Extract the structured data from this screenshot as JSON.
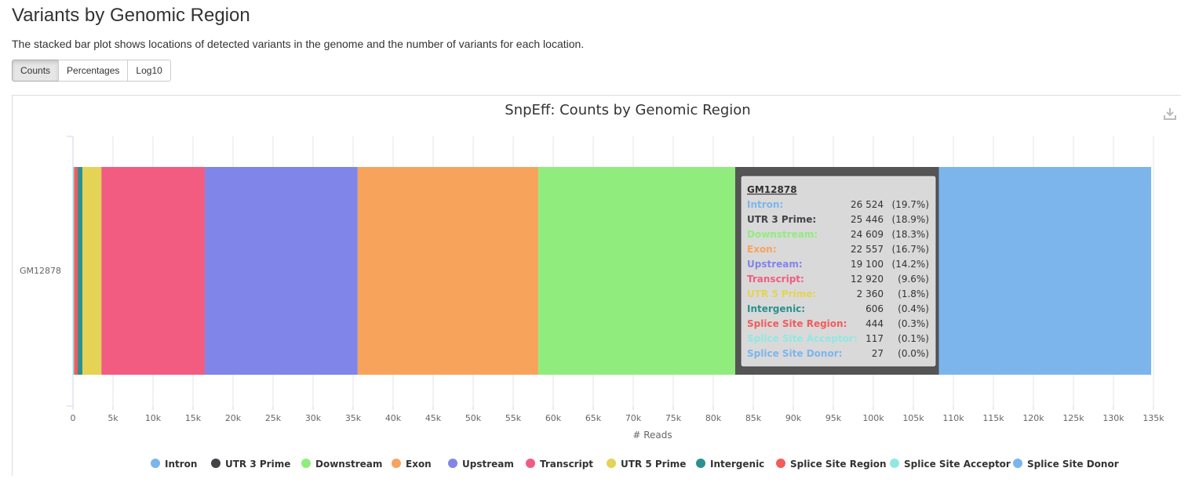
{
  "header": {
    "title": "Variants by Genomic Region",
    "description": "The stacked bar plot shows locations of detected variants in the genome and the number of variants for each location."
  },
  "toggle_buttons": [
    {
      "label": "Counts",
      "active": true
    },
    {
      "label": "Percentages",
      "active": false
    },
    {
      "label": "Log10",
      "active": false
    }
  ],
  "download_icon": "download-icon",
  "chart_data": {
    "type": "bar",
    "orientation": "horizontal",
    "stacked": true,
    "title": "SnpEff: Counts by Genomic Region",
    "xlabel": "# Reads",
    "ylabel": "",
    "xlim": [
      0,
      135000
    ],
    "x_ticks": [
      "0",
      "5k",
      "10k",
      "15k",
      "20k",
      "25k",
      "30k",
      "35k",
      "40k",
      "45k",
      "50k",
      "55k",
      "60k",
      "65k",
      "70k",
      "75k",
      "80k",
      "85k",
      "90k",
      "95k",
      "100k",
      "105k",
      "110k",
      "115k",
      "120k",
      "125k",
      "130k",
      "135k"
    ],
    "categories": [
      "GM12878"
    ],
    "grid": true,
    "legend_position": "bottom",
    "series": [
      {
        "name": "Intron",
        "color": "#7cb5ec",
        "values": [
          26524
        ],
        "percent": "(19.7%)"
      },
      {
        "name": "UTR 3 Prime",
        "color": "#434348",
        "values": [
          25446
        ],
        "percent": "(18.9%)"
      },
      {
        "name": "Downstream",
        "color": "#90ed7d",
        "values": [
          24609
        ],
        "percent": "(18.3%)"
      },
      {
        "name": "Exon",
        "color": "#f7a35c",
        "values": [
          22557
        ],
        "percent": "(16.7%)"
      },
      {
        "name": "Upstream",
        "color": "#8085e9",
        "values": [
          19100
        ],
        "percent": "(14.2%)"
      },
      {
        "name": "Transcript",
        "color": "#f15c80",
        "values": [
          12920
        ],
        "percent": "(9.6%)"
      },
      {
        "name": "UTR 5 Prime",
        "color": "#e4d354",
        "values": [
          2360
        ],
        "percent": "(1.8%)"
      },
      {
        "name": "Intergenic",
        "color": "#2b908f",
        "values": [
          606
        ],
        "percent": "(0.4%)"
      },
      {
        "name": "Splice Site Region",
        "color": "#f45b5b",
        "values": [
          444
        ],
        "percent": "(0.3%)"
      },
      {
        "name": "Splice Site Acceptor",
        "color": "#91e8e1",
        "values": [
          117
        ],
        "percent": "(0.1%)"
      },
      {
        "name": "Splice Site Donor",
        "color": "#7cb5ec",
        "values": [
          27
        ],
        "percent": "(0.0%)"
      }
    ],
    "tooltip": {
      "title": "GM12878",
      "rows": [
        {
          "label": "Intron:",
          "value": "26 524",
          "percent": "(19.7%)"
        },
        {
          "label": "UTR 3 Prime:",
          "value": "25 446",
          "percent": "(18.9%)"
        },
        {
          "label": "Downstream:",
          "value": "24 609",
          "percent": "(18.3%)"
        },
        {
          "label": "Exon:",
          "value": "22 557",
          "percent": "(16.7%)"
        },
        {
          "label": "Upstream:",
          "value": "19 100",
          "percent": "(14.2%)"
        },
        {
          "label": "Transcript:",
          "value": "12 920",
          "percent": "(9.6%)"
        },
        {
          "label": "UTR 5 Prime:",
          "value": "2 360",
          "percent": "(1.8%)"
        },
        {
          "label": "Intergenic:",
          "value": "606",
          "percent": "(0.4%)"
        },
        {
          "label": "Splice Site Region:",
          "value": "444",
          "percent": "(0.3%)"
        },
        {
          "label": "Splice Site Acceptor:",
          "value": "117",
          "percent": "(0.1%)"
        },
        {
          "label": "Splice Site Donor:",
          "value": "27",
          "percent": "(0.0%)"
        }
      ]
    },
    "highlighted_series": "UTR 3 Prime",
    "highlight_color": "#555555"
  }
}
